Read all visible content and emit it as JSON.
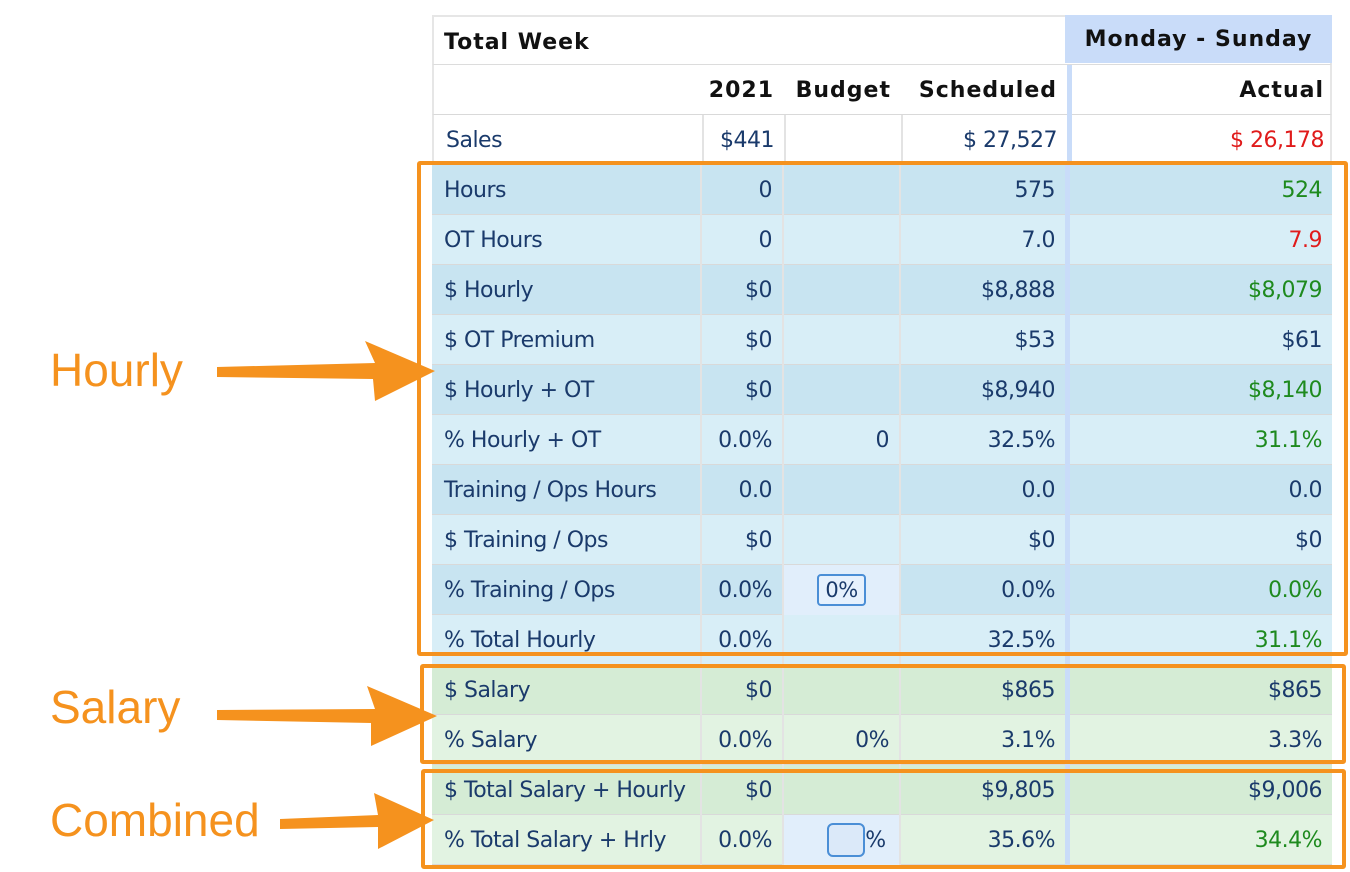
{
  "table": {
    "title": "Total Week",
    "period_label": "Monday - Sunday",
    "columns": [
      "2021",
      "Budget",
      "Scheduled",
      "Actual"
    ],
    "sales": {
      "label": "Sales",
      "y2021": "$441",
      "budget": "",
      "scheduled": "$ 27,527",
      "actual": "$ 26,178"
    },
    "rows": [
      {
        "label": "Hours",
        "y2021": "0",
        "budget": "",
        "scheduled": "575",
        "actual": "524"
      },
      {
        "label": "OT Hours",
        "y2021": "0",
        "budget": "",
        "scheduled": "7.0",
        "actual": "7.9"
      },
      {
        "label": "$ Hourly",
        "y2021": "$0",
        "budget": "",
        "scheduled": "$8,888",
        "actual": "$8,079"
      },
      {
        "label": "$ OT Premium",
        "y2021": "$0",
        "budget": "",
        "scheduled": "$53",
        "actual": "$61"
      },
      {
        "label": "$ Hourly + OT",
        "y2021": "$0",
        "budget": "",
        "scheduled": "$8,940",
        "actual": "$8,140"
      },
      {
        "label": "% Hourly + OT",
        "y2021": "0.0%",
        "budget": "0",
        "scheduled": "32.5%",
        "actual": "31.1%"
      },
      {
        "label": "Training / Ops Hours",
        "y2021": "0.0",
        "budget": "",
        "scheduled": "0.0",
        "actual": "0.0"
      },
      {
        "label": "$ Training / Ops",
        "y2021": "$0",
        "budget": "",
        "scheduled": "$0",
        "actual": "$0"
      },
      {
        "label": "% Training / Ops",
        "y2021": "0.0%",
        "budget": "0%",
        "scheduled": "0.0%",
        "actual": "0.0%"
      },
      {
        "label": "% Total Hourly",
        "y2021": "0.0%",
        "budget": "",
        "scheduled": "32.5%",
        "actual": "31.1%"
      },
      {
        "label": "$ Salary",
        "y2021": "$0",
        "budget": "",
        "scheduled": "$865",
        "actual": "$865"
      },
      {
        "label": "% Salary",
        "y2021": "0.0%",
        "budget": "0%",
        "scheduled": "3.1%",
        "actual": "3.3%"
      },
      {
        "label": "$ Total Salary + Hourly",
        "y2021": "$0",
        "budget": "",
        "scheduled": "$9,805",
        "actual": "$9,006"
      },
      {
        "label": "% Total Salary + Hrly",
        "y2021": "0.0%",
        "budget": "%",
        "scheduled": "35.6%",
        "actual": "34.4%"
      }
    ]
  },
  "annotations": {
    "hourly": "Hourly",
    "salary": "Salary",
    "combined": "Combined"
  },
  "colors": {
    "annotation_orange": "#f5921e",
    "good_green": "#1e8a1e",
    "bad_red": "#e01b1b",
    "text_navy": "#1a3a6b",
    "hourly_bg": "#d8eef7",
    "salary_bg": "#e2f3e2",
    "period_header_bg": "#c9dcf9"
  }
}
